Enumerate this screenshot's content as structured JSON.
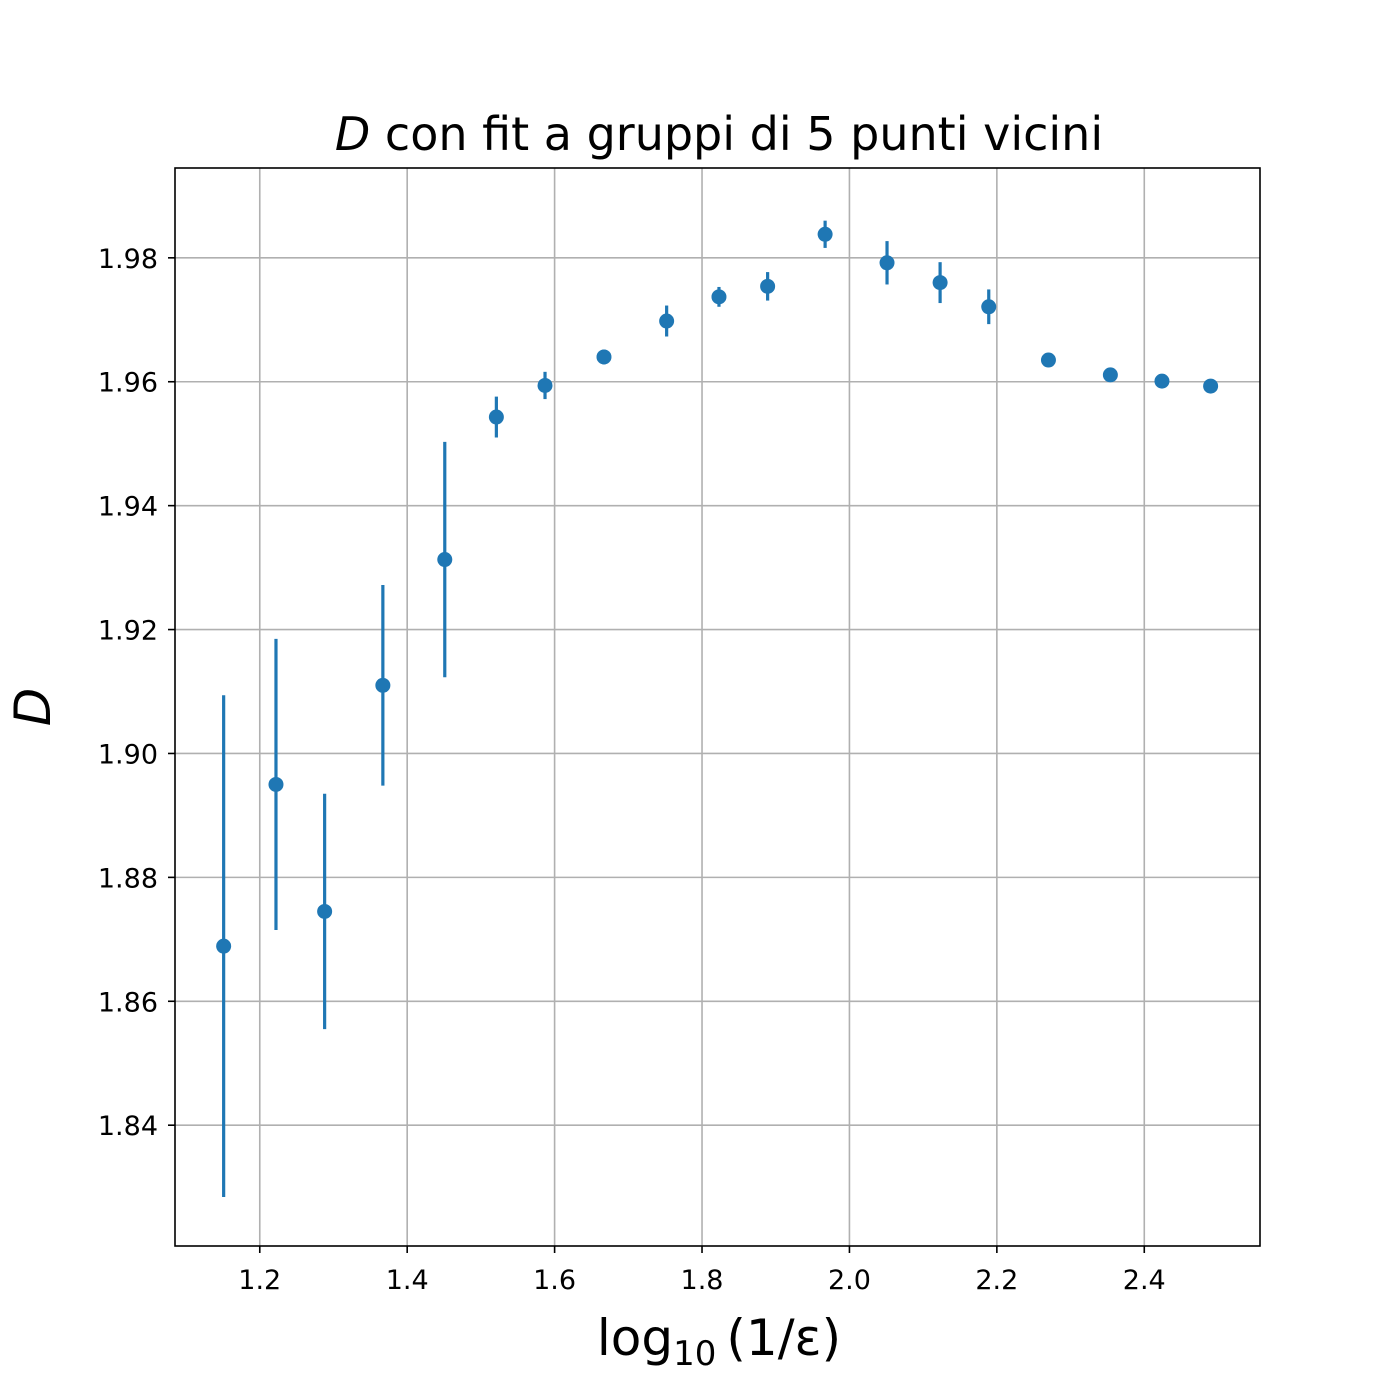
{
  "chart_data": {
    "type": "scatter",
    "title_symbol": "D",
    "title_rest": " con fit a gruppi di 5 punti vicini",
    "xlabel_main": "log",
    "xlabel_sub": "10",
    "xlabel_rest": "(1/ε)",
    "ylabel": "D",
    "xlim": [
      1.085,
      2.557
    ],
    "ylim": [
      1.8205,
      1.9945
    ],
    "xticks": [
      1.2,
      1.4,
      1.6,
      1.8,
      2.0,
      2.2,
      2.4
    ],
    "xtick_labels": [
      "1.2",
      "1.4",
      "1.6",
      "1.8",
      "2.0",
      "2.2",
      "2.4"
    ],
    "yticks": [
      1.84,
      1.86,
      1.88,
      1.9,
      1.92,
      1.94,
      1.96,
      1.98
    ],
    "ytick_labels": [
      "1.84",
      "1.86",
      "1.88",
      "1.90",
      "1.92",
      "1.94",
      "1.96",
      "1.98"
    ],
    "grid": true,
    "color": "#1f77b4",
    "series": [
      {
        "x": [
          1.151,
          1.222,
          1.288,
          1.367,
          1.451,
          1.521,
          1.587,
          1.667,
          1.752,
          1.823,
          1.889,
          1.967,
          2.051,
          2.123,
          2.189,
          2.27,
          2.354,
          2.424,
          2.49
        ],
        "y": [
          1.8689,
          1.895,
          1.8745,
          1.911,
          1.9313,
          1.9543,
          1.9594,
          1.964,
          1.9698,
          1.9737,
          1.9754,
          1.9838,
          1.9792,
          1.976,
          1.9721,
          1.9635,
          1.9611,
          1.9601,
          1.9593
        ],
        "err": [
          0.0405,
          0.0235,
          0.019,
          0.0162,
          0.019,
          0.0033,
          0.0022,
          0.0012,
          0.0025,
          0.0016,
          0.0023,
          0.0022,
          0.0035,
          0.0033,
          0.0028,
          0.0009,
          0.0006,
          0.0005,
          0.0006
        ]
      }
    ]
  }
}
